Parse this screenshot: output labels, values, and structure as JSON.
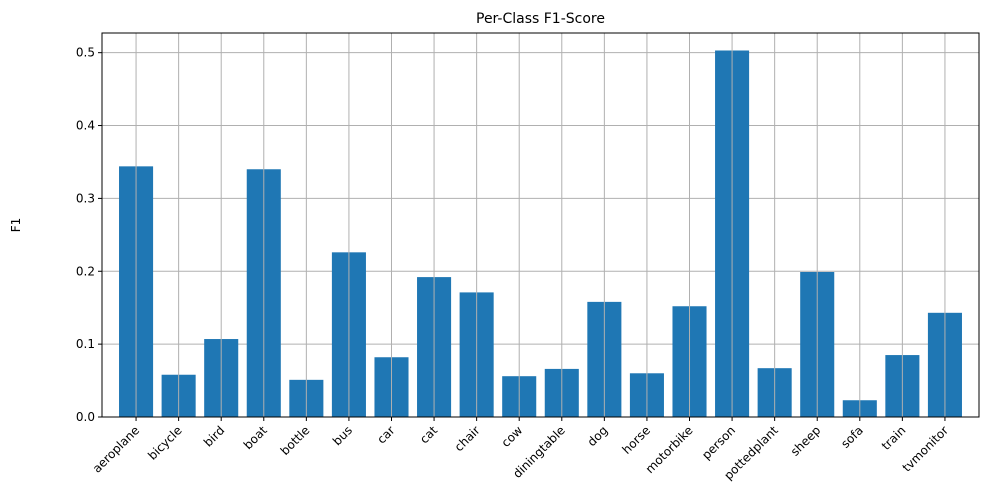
{
  "chart_data": {
    "type": "bar",
    "title": "Per-Class F1-Score",
    "xlabel": "",
    "ylabel": "F1",
    "categories": [
      "aeroplane",
      "bicycle",
      "bird",
      "boat",
      "bottle",
      "bus",
      "car",
      "cat",
      "chair",
      "cow",
      "diningtable",
      "dog",
      "horse",
      "motorbike",
      "person",
      "pottedplant",
      "sheep",
      "sofa",
      "train",
      "tvmonitor"
    ],
    "values": [
      0.344,
      0.058,
      0.107,
      0.34,
      0.051,
      0.226,
      0.082,
      0.192,
      0.171,
      0.056,
      0.066,
      0.158,
      0.06,
      0.152,
      0.503,
      0.067,
      0.199,
      0.023,
      0.085,
      0.143
    ],
    "ylim": [
      0,
      0.527
    ],
    "yticks": [
      0.0,
      0.1,
      0.2,
      0.3,
      0.4,
      0.5
    ],
    "ytick_labels": [
      "0.0",
      "0.1",
      "0.2",
      "0.3",
      "0.4",
      "0.5"
    ],
    "grid": true,
    "bar_color": "#1f77b4",
    "grid_color": "#b0b0b0"
  }
}
